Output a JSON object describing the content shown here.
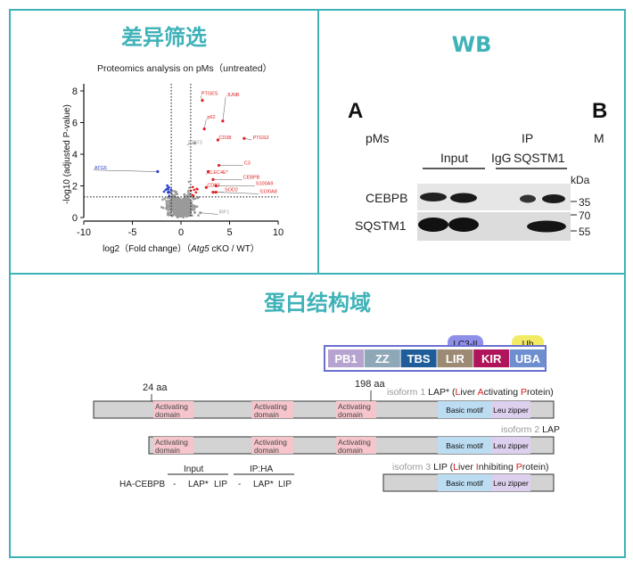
{
  "panels": {
    "volcano_title": "差异筛选",
    "wb_title": "WB",
    "domain_title": "蛋白结构域"
  },
  "colors": {
    "border": "#3fb2b8",
    "title": "#3fb2b8",
    "up": "#e02020",
    "down": "#2a3fd0",
    "ns": "#9a9a9a"
  },
  "chart_data": {
    "type": "scatter",
    "title": "Proteomics analysis on pMs（untreated）",
    "xlabel_prefix": "log2（Fold change）（",
    "xlabel_gene": "Atg5",
    "xlabel_suffix": " cKO / WT）",
    "ylabel": "-log10 (adjusted P-value)",
    "xlim": [
      -10,
      10
    ],
    "ylim": [
      0,
      8
    ],
    "xticks": [
      -10,
      -5,
      0,
      5,
      10
    ],
    "yticks": [
      0,
      2,
      4,
      6,
      8
    ],
    "fc_thresholds": [
      -1,
      1
    ],
    "p_threshold": 1.3,
    "labeled_points": [
      {
        "name": "PTGES",
        "x": 2.2,
        "y": 7.4,
        "tx": 2.0,
        "ty": 7.7,
        "group": "up"
      },
      {
        "name": "JUNB",
        "x": 4.3,
        "y": 6.1,
        "tx": 4.6,
        "ty": 7.6,
        "group": "up"
      },
      {
        "name": "p62",
        "x": 2.4,
        "y": 5.6,
        "tx": 2.6,
        "ty": 6.2,
        "group": "up"
      },
      {
        "name": "STAT3",
        "x": 1.4,
        "y": 4.7,
        "tx": 0.6,
        "ty": 4.6,
        "group": "ns"
      },
      {
        "name": "CD38",
        "x": 3.8,
        "y": 4.9,
        "tx": 3.8,
        "ty": 4.9,
        "group": "up"
      },
      {
        "name": "PTGS2",
        "x": 6.5,
        "y": 5.0,
        "tx": 7.3,
        "ty": 4.9,
        "group": "up"
      },
      {
        "name": "C3",
        "x": 3.9,
        "y": 3.3,
        "tx": 6.4,
        "ty": 3.3,
        "group": "up"
      },
      {
        "name": "CLEC4E*",
        "x": 2.8,
        "y": 2.9,
        "tx": 2.6,
        "ty": 2.7,
        "group": "up"
      },
      {
        "name": "CEBPB",
        "x": 3.3,
        "y": 2.4,
        "tx": 6.3,
        "ty": 2.4,
        "group": "up"
      },
      {
        "name": "CD83",
        "x": 2.6,
        "y": 1.9,
        "tx": 2.6,
        "ty": 1.9,
        "group": "up"
      },
      {
        "name": "S100A9",
        "x": 3.6,
        "y": 2.0,
        "tx": 7.6,
        "ty": 2.0,
        "group": "up"
      },
      {
        "name": "SOD2",
        "x": 3.3,
        "y": 1.6,
        "tx": 4.4,
        "ty": 1.6,
        "group": "up"
      },
      {
        "name": "S100A8",
        "x": 3.6,
        "y": 1.6,
        "tx": 8.0,
        "ty": 1.5,
        "group": "up"
      },
      {
        "name": "ATG5",
        "x": -2.4,
        "y": 2.9,
        "tx": -9.0,
        "ty": 3.0,
        "group": "down"
      },
      {
        "name": "IRF1",
        "x": 2.0,
        "y": 0.3,
        "tx": 3.8,
        "ty": 0.2,
        "group": "ns"
      }
    ]
  },
  "wb": {
    "panel_letter": "A",
    "panel_letter_next": "B",
    "sample_label": "pMs",
    "ip_label": "IP",
    "input_label": "Input",
    "igg_label": "IgG",
    "sqstm1_ip_label": "SQSTM1",
    "kda_label": "kDa",
    "row1_label": "CEBPB",
    "row2_label": "SQSTM1",
    "markers": [
      "35",
      "70",
      "55"
    ],
    "stray_letter": "M"
  },
  "domains": {
    "sqstm1": [
      {
        "label": "PB1",
        "color": "#b7a3cf"
      },
      {
        "label": "ZZ",
        "color": "#8fa8b8"
      },
      {
        "label": "TBS",
        "color": "#1f5c9a"
      },
      {
        "label": "LIR",
        "color": "#9d8a74"
      },
      {
        "label": "KIR",
        "color": "#b0145a"
      },
      {
        "label": "UBA",
        "color": "#6d8fcf"
      }
    ],
    "lc3_label": "LC3-II",
    "ub_label": "Ub",
    "aa_start": "24 aa",
    "aa_end": "198 aa",
    "activating_line1": "Activating",
    "activating_line2": "domain",
    "basic_motif": "Basic motif",
    "leu_zipper": "Leu zipper",
    "isoform1": {
      "prefix": "isoform 1",
      "name": "LAP*",
      "paren_open": " (",
      "w1c": "L",
      "w1": "iver ",
      "w2c": "A",
      "w2": "ctivating ",
      "w3c": "P",
      "w3": "rotein)"
    },
    "isoform2": {
      "prefix": "isoform 2",
      "name": "LAP"
    },
    "isoform3": {
      "prefix": "isoform 3",
      "name": "LIP",
      "paren_open": " (",
      "w1c": "L",
      "w1": "iver ",
      "w2c": "I",
      "w2": "nhibiting ",
      "w3c": "P",
      "w3": "rotein)"
    },
    "gel": {
      "input_label": "Input",
      "ipha_label": "IP:HA",
      "row_label": "HA-CEBPB",
      "lanes": [
        "-",
        "LAP*",
        "LIP",
        "-",
        "LAP*",
        "LIP"
      ]
    }
  }
}
